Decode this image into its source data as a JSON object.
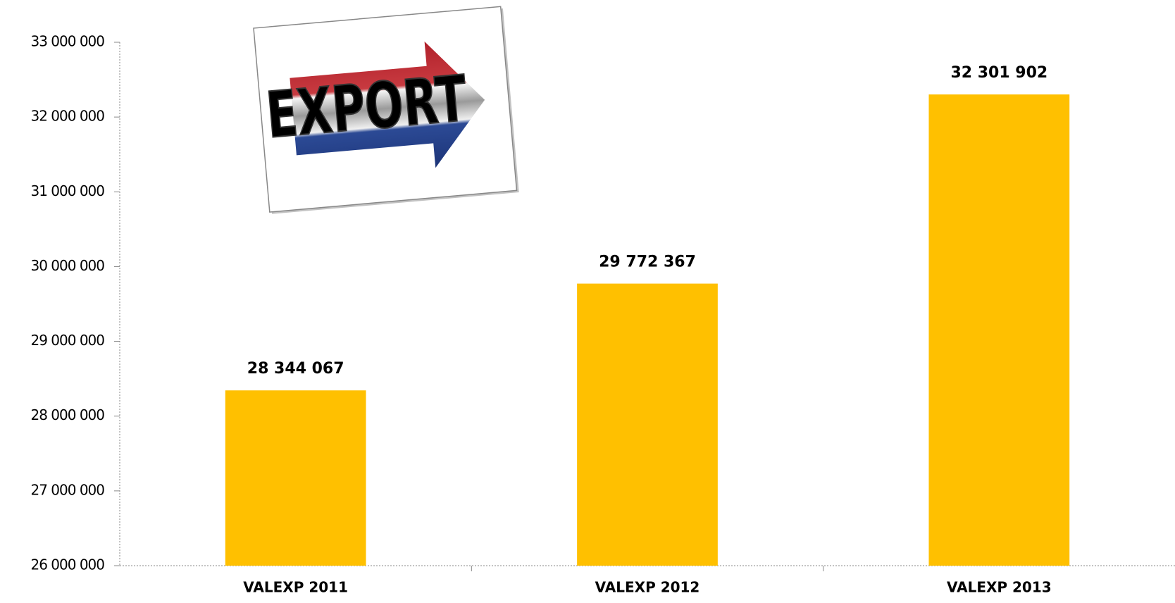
{
  "chart_data": {
    "type": "bar",
    "annotations": [
      "EXPORT"
    ],
    "categories": [
      "VALEXP 2011",
      "VALEXP 2012",
      "VALEXP 2013"
    ],
    "values": [
      28344067,
      29772367,
      32301902
    ],
    "value_labels": [
      "28 344 067",
      "29 772 367",
      "32 301 902"
    ],
    "color": "#ffc000",
    "ylim": [
      26000000,
      33000000
    ],
    "yticks": [
      {
        "value": 26000000,
        "label": "26 000 000"
      },
      {
        "value": 27000000,
        "label": "27 000 000"
      },
      {
        "value": 28000000,
        "label": "28 000 000"
      },
      {
        "value": 29000000,
        "label": "29 000 000"
      },
      {
        "value": 30000000,
        "label": "30 000 000"
      },
      {
        "value": 31000000,
        "label": "31 000 000"
      },
      {
        "value": 32000000,
        "label": "32 000 000"
      },
      {
        "value": 33000000,
        "label": "33 000 000"
      }
    ],
    "grid": false
  }
}
